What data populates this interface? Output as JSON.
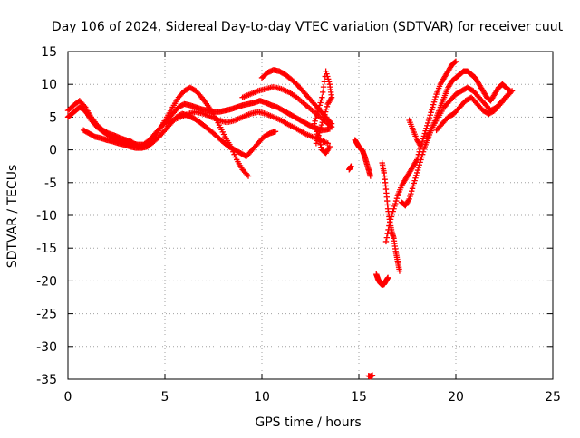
{
  "chart_data": {
    "type": "scatter",
    "title": "Day 106 of 2024, Sidereal Day-to-day VTEC variation (SDTVAR) for receiver cuut",
    "xlabel": "GPS time / hours",
    "ylabel": "SDTVAR / TECUs",
    "xlim": [
      0,
      25
    ],
    "ylim": [
      -35,
      15
    ],
    "x_ticks": [
      0,
      5,
      10,
      15,
      20,
      25
    ],
    "y_ticks": [
      -35,
      -30,
      -25,
      -20,
      -15,
      -10,
      -5,
      0,
      5,
      10,
      15
    ],
    "grid": true,
    "marker": "+",
    "color": "#ff0000",
    "series": [
      {
        "name": "track-1",
        "x": [
          0.0,
          0.2,
          0.4,
          0.6,
          0.8,
          1.0,
          1.2,
          1.5,
          1.8,
          2.1,
          2.4,
          2.7,
          3.0,
          3.3,
          3.6,
          3.9,
          4.2,
          4.5,
          4.8,
          5.1,
          5.4,
          5.7,
          6.0,
          6.3,
          6.6,
          6.9,
          7.2,
          7.5,
          7.8,
          8.1,
          8.4,
          8.7,
          9.0,
          9.3,
          9.6,
          9.9,
          10.2,
          10.5,
          10.8,
          11.1,
          11.4,
          11.7,
          12.0,
          12.3,
          12.6,
          12.9,
          13.2,
          13.5
        ],
        "y": [
          5.0,
          5.5,
          6.0,
          6.5,
          6.2,
          5.5,
          4.5,
          3.5,
          2.8,
          2.2,
          1.8,
          1.5,
          1.2,
          1.0,
          0.8,
          0.8,
          1.5,
          2.5,
          3.5,
          4.5,
          5.5,
          6.5,
          7.0,
          6.8,
          6.5,
          6.2,
          6.0,
          5.8,
          5.8,
          6.0,
          6.2,
          6.5,
          6.8,
          7.0,
          7.2,
          7.5,
          7.2,
          6.8,
          6.5,
          6.0,
          5.5,
          5.0,
          4.5,
          4.0,
          3.5,
          3.2,
          3.0,
          3.2
        ]
      },
      {
        "name": "track-2",
        "x": [
          0.0,
          0.3,
          0.6,
          0.9,
          1.2,
          1.5,
          1.8,
          2.1,
          2.4,
          2.7,
          3.0,
          3.3,
          3.6,
          3.9,
          4.2,
          4.5,
          4.8,
          5.1,
          5.4,
          5.7,
          6.0,
          6.3,
          6.6,
          6.9,
          7.2,
          7.5,
          7.8,
          8.1,
          8.4,
          8.7,
          9.0,
          9.3
        ],
        "y": [
          6.0,
          6.8,
          7.5,
          6.5,
          5.0,
          3.8,
          3.0,
          2.5,
          2.2,
          1.8,
          1.5,
          1.2,
          0.5,
          0.5,
          1.0,
          2.0,
          3.5,
          5.0,
          6.5,
          8.0,
          9.0,
          9.5,
          9.0,
          8.0,
          6.8,
          5.5,
          3.8,
          2.0,
          0.5,
          -1.5,
          -3.0,
          -4.0
        ]
      },
      {
        "name": "track-3",
        "x": [
          0.8,
          1.1,
          1.4,
          1.7,
          2.0,
          2.3,
          2.6,
          2.9,
          3.2,
          3.5,
          3.8,
          4.1,
          4.4,
          4.7,
          5.0,
          5.3,
          5.6,
          5.9,
          6.2,
          6.5,
          6.8,
          7.1,
          7.4,
          7.7,
          8.0,
          8.3,
          8.6,
          8.9,
          9.2,
          9.5,
          9.8,
          10.1,
          10.4,
          10.7
        ],
        "y": [
          3.0,
          2.5,
          2.0,
          1.8,
          1.5,
          1.3,
          1.0,
          0.8,
          0.5,
          0.3,
          0.3,
          0.5,
          1.2,
          2.0,
          3.0,
          4.0,
          5.0,
          5.5,
          5.2,
          4.8,
          4.2,
          3.5,
          2.8,
          2.0,
          1.2,
          0.5,
          0.0,
          -0.5,
          -1.0,
          0.0,
          1.0,
          2.0,
          2.5,
          2.8
        ]
      },
      {
        "name": "track-4",
        "x": [
          5.0,
          5.4,
          5.8,
          6.2,
          6.6,
          7.0,
          7.4,
          7.8,
          8.2,
          8.6,
          9.0,
          9.4,
          9.8,
          10.2,
          10.6,
          11.0,
          11.4,
          11.8,
          12.2,
          12.6,
          13.0,
          13.4
        ],
        "y": [
          4.0,
          4.5,
          5.0,
          5.5,
          5.8,
          5.5,
          5.0,
          4.5,
          4.2,
          4.5,
          5.0,
          5.5,
          5.8,
          5.5,
          5.0,
          4.5,
          3.8,
          3.2,
          2.5,
          2.0,
          1.5,
          1.0
        ]
      },
      {
        "name": "track-5",
        "x": [
          10.0,
          10.3,
          10.6,
          10.9,
          11.2,
          11.5,
          11.8,
          12.1,
          12.4,
          12.7,
          13.0,
          13.3,
          13.6
        ],
        "y": [
          11.0,
          11.8,
          12.2,
          12.0,
          11.5,
          10.8,
          10.0,
          9.0,
          8.0,
          7.0,
          6.0,
          5.0,
          4.0
        ]
      },
      {
        "name": "track-6",
        "x": [
          9.0,
          9.4,
          9.8,
          10.2,
          10.6,
          11.0,
          11.4,
          11.8,
          12.2,
          12.6,
          13.0,
          13.4,
          13.6
        ],
        "y": [
          8.0,
          8.5,
          9.0,
          9.3,
          9.6,
          9.3,
          8.8,
          8.0,
          7.0,
          6.0,
          5.0,
          4.0,
          3.5
        ]
      },
      {
        "name": "track-7",
        "x": [
          12.8,
          13.0,
          13.2,
          13.4,
          13.6,
          13.5,
          13.3,
          13.1,
          12.9,
          12.7,
          12.9,
          13.1,
          13.3,
          13.5
        ],
        "y": [
          1.0,
          3.0,
          5.0,
          7.0,
          8.0,
          10.0,
          12.0,
          8.0,
          6.0,
          4.0,
          2.0,
          0.0,
          -0.5,
          0.5
        ]
      },
      {
        "name": "track-8",
        "x": [
          14.8,
          14.9,
          15.0,
          15.1,
          15.2,
          15.3,
          15.4,
          15.5,
          15.6
        ],
        "y": [
          1.5,
          1.0,
          0.5,
          0.2,
          -0.2,
          -1.0,
          -2.0,
          -3.0,
          -4.0
        ]
      },
      {
        "name": "track-9",
        "x": [
          14.5,
          14.6
        ],
        "y": [
          -3.0,
          -2.5
        ]
      },
      {
        "name": "track-10",
        "x": [
          15.9,
          16.0,
          16.1,
          16.2,
          16.3,
          16.4,
          16.5
        ],
        "y": [
          -19.0,
          -19.8,
          -20.3,
          -20.6,
          -20.5,
          -20.0,
          -19.5
        ]
      },
      {
        "name": "track-11",
        "x": [
          15.5,
          15.6,
          15.7
        ],
        "y": [
          -34.5,
          -34.6,
          -34.4
        ]
      },
      {
        "name": "track-12",
        "x": [
          16.2,
          16.3,
          16.4,
          16.5,
          16.6,
          16.7,
          16.8,
          16.9,
          17.0,
          17.1
        ],
        "y": [
          -2.0,
          -3.5,
          -6.0,
          -9.0,
          -11.0,
          -12.5,
          -13.5,
          -15.5,
          -17.0,
          -18.5
        ]
      },
      {
        "name": "track-13",
        "x": [
          16.4,
          16.6,
          16.8,
          17.0,
          17.2,
          17.4,
          17.6,
          17.8,
          18.0,
          18.2,
          18.4,
          18.6,
          18.8,
          19.0,
          19.2,
          19.4,
          19.6,
          19.8,
          20.0
        ],
        "y": [
          -14.0,
          -11.0,
          -9.0,
          -7.0,
          -5.5,
          -4.5,
          -3.5,
          -2.5,
          -1.5,
          0.5,
          2.5,
          4.5,
          6.5,
          8.5,
          10.0,
          11.0,
          12.0,
          13.0,
          13.5
        ]
      },
      {
        "name": "track-14",
        "x": [
          17.2,
          17.4,
          17.6,
          17.8,
          18.0,
          18.2,
          18.4,
          18.6,
          18.8,
          19.0,
          19.2,
          19.4,
          19.6,
          19.8,
          20.0,
          20.2,
          20.4,
          20.6,
          20.8,
          21.0,
          21.2,
          21.4,
          21.6,
          21.8,
          22.0,
          22.2,
          22.4,
          22.6,
          22.8
        ],
        "y": [
          -8.0,
          -8.5,
          -7.5,
          -5.5,
          -3.5,
          -1.5,
          0.5,
          2.0,
          3.5,
          5.0,
          6.5,
          8.0,
          9.5,
          10.5,
          11.0,
          11.5,
          12.0,
          12.0,
          11.5,
          11.0,
          10.0,
          9.0,
          8.0,
          7.5,
          8.5,
          9.5,
          10.0,
          9.5,
          9.0
        ]
      },
      {
        "name": "track-15",
        "x": [
          18.5,
          18.8,
          19.1,
          19.4,
          19.7,
          20.0,
          20.3,
          20.6,
          20.9,
          21.2,
          21.5,
          21.8,
          22.1,
          22.4,
          22.7
        ],
        "y": [
          2.0,
          3.5,
          5.0,
          6.5,
          7.5,
          8.5,
          9.0,
          9.5,
          9.0,
          8.0,
          7.0,
          6.0,
          6.5,
          7.5,
          8.5
        ]
      },
      {
        "name": "track-16",
        "x": [
          19.0,
          19.3,
          19.6,
          19.9,
          20.2,
          20.5,
          20.8,
          21.1,
          21.4,
          21.7,
          22.0,
          22.3,
          22.6,
          22.9
        ],
        "y": [
          3.0,
          4.0,
          5.0,
          5.5,
          6.5,
          7.5,
          8.0,
          7.0,
          6.0,
          5.5,
          6.0,
          7.0,
          8.0,
          9.0
        ]
      },
      {
        "name": "track-17",
        "x": [
          17.6,
          17.8,
          18.0,
          18.2
        ],
        "y": [
          4.5,
          3.0,
          1.5,
          0.5
        ]
      }
    ]
  }
}
